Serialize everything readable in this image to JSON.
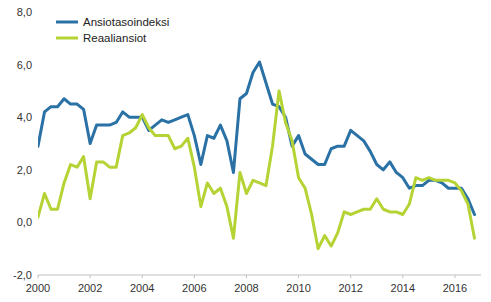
{
  "chart_data": {
    "type": "line",
    "x": [
      2000,
      2000.25,
      2000.5,
      2000.75,
      2001,
      2001.25,
      2001.5,
      2001.75,
      2002,
      2002.25,
      2002.5,
      2002.75,
      2003,
      2003.25,
      2003.5,
      2003.75,
      2004,
      2004.25,
      2004.5,
      2004.75,
      2005,
      2005.25,
      2005.5,
      2005.75,
      2006,
      2006.25,
      2006.5,
      2006.75,
      2007,
      2007.25,
      2007.5,
      2007.75,
      2008,
      2008.25,
      2008.5,
      2008.75,
      2009,
      2009.25,
      2009.5,
      2009.75,
      2010,
      2010.25,
      2010.5,
      2010.75,
      2011,
      2011.25,
      2011.5,
      2011.75,
      2012,
      2012.25,
      2012.5,
      2012.75,
      2013,
      2013.25,
      2013.5,
      2013.75,
      2014,
      2014.25,
      2014.5,
      2014.75,
      2015,
      2015.25,
      2015.5,
      2015.75,
      2016,
      2016.25,
      2016.5,
      2016.75
    ],
    "series": [
      {
        "name": "Ansiotasoindeksi",
        "color": "#2a71a6",
        "values": [
          2.9,
          4.2,
          4.4,
          4.4,
          4.7,
          4.5,
          4.5,
          4.3,
          3.0,
          3.7,
          3.7,
          3.7,
          3.8,
          4.2,
          4.0,
          4.0,
          4.0,
          3.5,
          3.7,
          3.9,
          3.8,
          3.9,
          4.0,
          4.1,
          3.3,
          2.2,
          3.3,
          3.2,
          3.7,
          3.1,
          1.9,
          4.7,
          4.9,
          5.7,
          6.1,
          5.3,
          4.5,
          4.4,
          4.0,
          2.9,
          3.3,
          2.6,
          2.4,
          2.2,
          2.2,
          2.8,
          2.9,
          2.9,
          3.5,
          3.3,
          3.1,
          2.7,
          2.2,
          2.0,
          2.3,
          1.9,
          1.7,
          1.3,
          1.4,
          1.4,
          1.6,
          1.6,
          1.5,
          1.3,
          1.3,
          1.3,
          0.9,
          0.3
        ]
      },
      {
        "name": "Reaaliansiot",
        "color": "#b5d334",
        "values": [
          0.2,
          1.1,
          0.5,
          0.5,
          1.5,
          2.2,
          2.1,
          2.5,
          0.9,
          2.3,
          2.3,
          2.1,
          2.1,
          3.3,
          3.4,
          3.6,
          4.1,
          3.6,
          3.3,
          3.3,
          3.3,
          2.8,
          2.9,
          3.2,
          2.1,
          0.6,
          1.5,
          1.1,
          1.3,
          0.6,
          -0.6,
          1.9,
          1.1,
          1.6,
          1.5,
          1.4,
          2.9,
          5.0,
          3.8,
          3.1,
          1.7,
          1.3,
          0.3,
          -1.0,
          -0.5,
          -0.9,
          -0.4,
          0.4,
          0.3,
          0.4,
          0.5,
          0.5,
          0.9,
          0.5,
          0.4,
          0.4,
          0.3,
          0.7,
          1.7,
          1.6,
          1.7,
          1.6,
          1.6,
          1.6,
          1.5,
          1.2,
          0.7,
          -0.6
        ]
      }
    ],
    "xlim": [
      2000,
      2017
    ],
    "xticks": [
      2000,
      2002,
      2004,
      2006,
      2008,
      2010,
      2012,
      2014,
      2016
    ],
    "ylim": [
      -2,
      8
    ],
    "yticks": [
      {
        "value": -2,
        "label": "-2,0"
      },
      {
        "value": 0,
        "label": "0,0"
      },
      {
        "value": 2,
        "label": "2,0"
      },
      {
        "value": 4,
        "label": "4,0"
      },
      {
        "value": 6,
        "label": "6,0"
      },
      {
        "value": 8,
        "label": "8,0"
      }
    ],
    "grid": false,
    "legend": "top-left"
  }
}
